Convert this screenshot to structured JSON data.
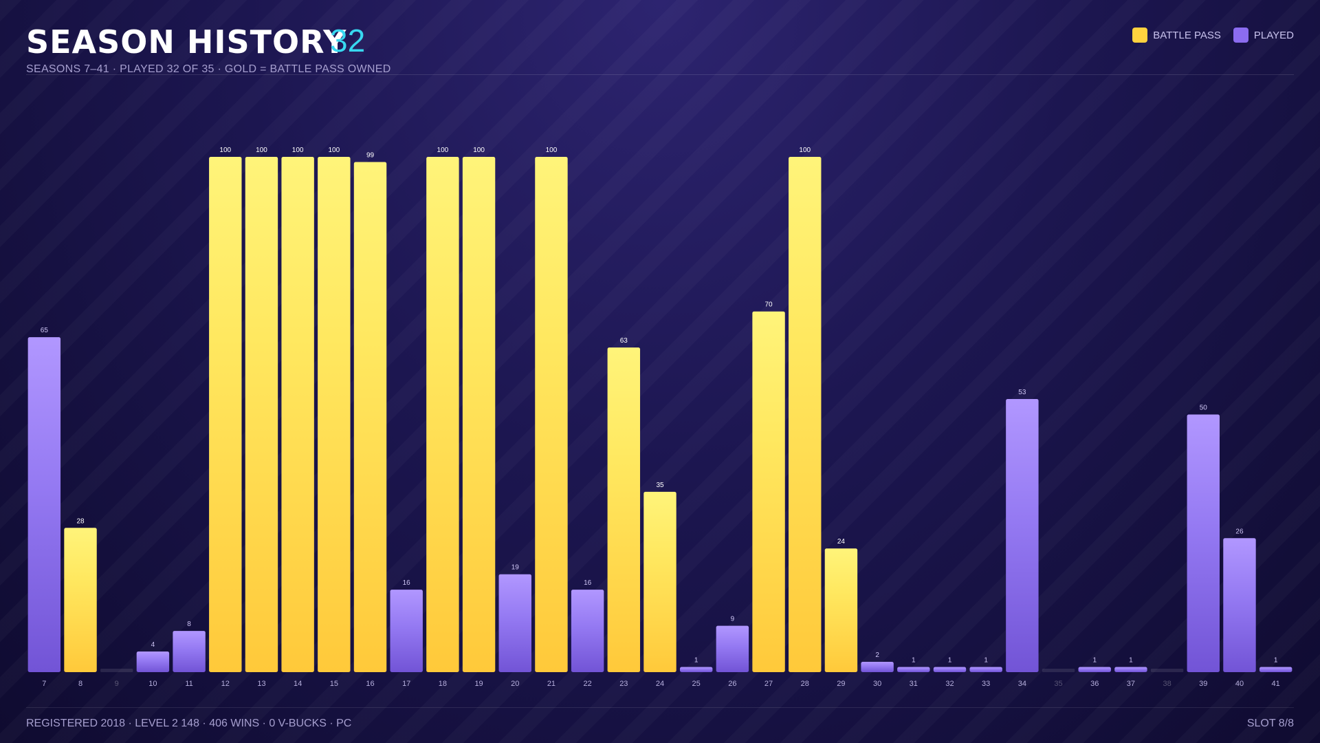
{
  "header": {
    "title": "SEASON HISTORY",
    "count": "32",
    "subtitle": "SEASONS 7–41 · PLAYED 32 OF 35 · GOLD = BATTLE PASS OWNED"
  },
  "legend": {
    "battle_pass_label": "BATTLE PASS",
    "played_label": "PLAYED",
    "battle_pass_color": "#ffd23f",
    "played_color": "#8b6cf0"
  },
  "footer": {
    "left": "REGISTERED 2018 · LEVEL 2 148 · 406 WINS · 0 V-BUCKS · PC",
    "right": "SLOT 8/8"
  },
  "chart_data": {
    "type": "bar",
    "categories": [
      "7",
      "8",
      "9",
      "10",
      "11",
      "12",
      "13",
      "14",
      "15",
      "16",
      "17",
      "18",
      "19",
      "20",
      "21",
      "22",
      "23",
      "24",
      "25",
      "26",
      "27",
      "28",
      "29",
      "30",
      "31",
      "32",
      "33",
      "34",
      "35",
      "36",
      "37",
      "38",
      "39",
      "40",
      "41"
    ],
    "values": [
      65,
      28,
      null,
      4,
      8,
      100,
      100,
      100,
      100,
      99,
      16,
      100,
      100,
      19,
      100,
      16,
      63,
      35,
      1,
      9,
      70,
      100,
      24,
      2,
      1,
      1,
      1,
      53,
      null,
      1,
      1,
      null,
      50,
      26,
      1
    ],
    "battle_pass": [
      false,
      true,
      false,
      false,
      false,
      true,
      true,
      true,
      true,
      true,
      false,
      true,
      true,
      false,
      true,
      false,
      true,
      true,
      false,
      false,
      true,
      true,
      true,
      false,
      false,
      false,
      false,
      false,
      false,
      false,
      false,
      false,
      false,
      false,
      false
    ],
    "ylim": [
      0,
      100
    ],
    "grid": false,
    "legend": "top-right"
  }
}
